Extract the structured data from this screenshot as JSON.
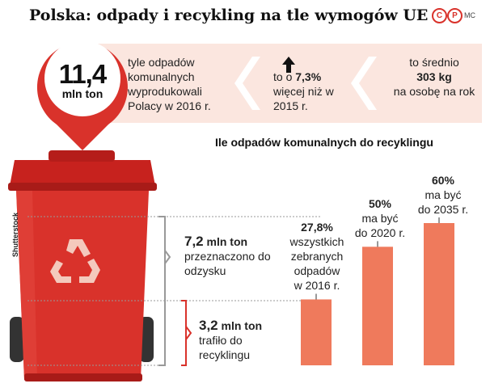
{
  "title": "Polska: odpady i recykling na tle wymogów UE",
  "logo": {
    "c_label": "C",
    "p_label": "P",
    "mc_label": "MC"
  },
  "colors": {
    "accent": "#d9322b",
    "bar": "#ef7a5c",
    "band": "#fbe6df"
  },
  "headline": {
    "value": "11,4",
    "unit": "mln ton",
    "fact1": "tyle odpadów komunalnych wyprodukowali Polacy w 2016 r.",
    "fact2_prefix": "to o",
    "fact2_value": "7,3%",
    "fact2_suffix": "więcej niż w 2015 r.",
    "fact3_prefix": "to średnio",
    "fact3_value": "303 kg",
    "fact3_suffix": "na osobę na rok",
    "up_icon": "arrow-up-icon"
  },
  "bin": {
    "icon": "recycling-bin-icon",
    "credit": "Shutterstock",
    "recovery": {
      "value": "7,2",
      "unit": "mln ton",
      "text": "przeznaczono do odzysku"
    },
    "recycled": {
      "value": "3,2",
      "unit": "mln ton",
      "text": "trafiło do recyklingu"
    }
  },
  "chart_data": {
    "type": "bar",
    "title": "Ile odpadów komunalnych do recyklingu",
    "categories": [
      "wszystkich zebranych odpadów w 2016 r.",
      "ma być do 2020 r.",
      "ma być do 2035 r."
    ],
    "values": [
      27.8,
      50,
      60
    ],
    "value_labels": [
      "27,8%",
      "50%",
      "60%"
    ],
    "label_lines": [
      [
        "wszystkich",
        "zebranych",
        "odpadów",
        "w 2016 r."
      ],
      [
        "ma być",
        "do 2020 r."
      ],
      [
        "ma być",
        "do 2035 r."
      ]
    ],
    "ylim": [
      0,
      60
    ],
    "grid": false,
    "legend": "none"
  }
}
